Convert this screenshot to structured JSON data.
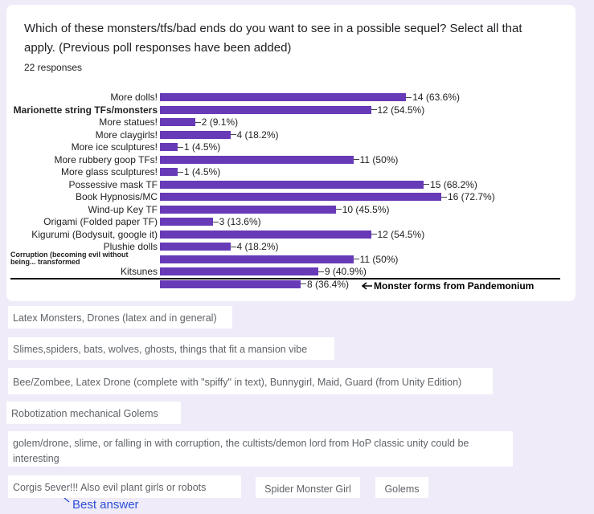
{
  "question": "Which of these monsters/tfs/bad ends do you want to see in a possible sequel? Select all that apply. (Previous poll responses have been added)",
  "response_count": "22 responses",
  "chart_data": {
    "type": "bar",
    "orientation": "horizontal",
    "color": "#673ab7",
    "categories": [
      "More dolls!",
      "Marionette string TFs/monsters",
      "More statues!",
      "More claygirls!",
      "More ice sculptures!",
      "More rubbery goop TFs!",
      "More glass sculptures!",
      "Possessive mask TF",
      "Book Hypnosis/MC",
      "Wind-up Key TF",
      "Origami (Folded paper TF)",
      "Kigurumi (Bodysuit, google it)",
      "Plushie dolls",
      "Corruption (becoming evil without being... transformed",
      "Kitsunes",
      null
    ],
    "values": [
      14,
      12,
      2,
      4,
      1,
      11,
      1,
      15,
      16,
      10,
      3,
      12,
      4,
      11,
      9,
      8
    ],
    "value_labels": [
      "14 (63.6%)",
      "12 (54.5%)",
      "2 (9.1%)",
      "4 (18.2%)",
      "1 (4.5%)",
      "11 (50%)",
      "1 (4.5%)",
      "15 (68.2%)",
      "16 (72.7%)",
      "10 (45.5%)",
      "3 (13.6%)",
      "12 (54.5%)",
      "4 (18.2%)",
      "11 (50%)",
      "9 (40.9%)",
      "8 (36.4%)"
    ],
    "annotation": "Monster forms from Pandemonium"
  },
  "other_responses": [
    "Latex Monsters, Drones (latex and in general)",
    "Slimes,spiders, bats, wolves, ghosts, things that fit a mansion vibe",
    "Bee/Zombee, Latex Drone (complete with \"spiffy\" in text), Bunnygirl, Maid, Guard (from Unity Edition)",
    "Robotization mechanical Golems",
    "golem/drone, slime, or falling in with corruption, the cultists/demon lord from HoP classic unity could be interesting",
    "Corgis 5ever!!! Also evil plant girls or robots",
    "Spider Monster Girl",
    "Golems"
  ],
  "best_answer_note": "Best answer"
}
